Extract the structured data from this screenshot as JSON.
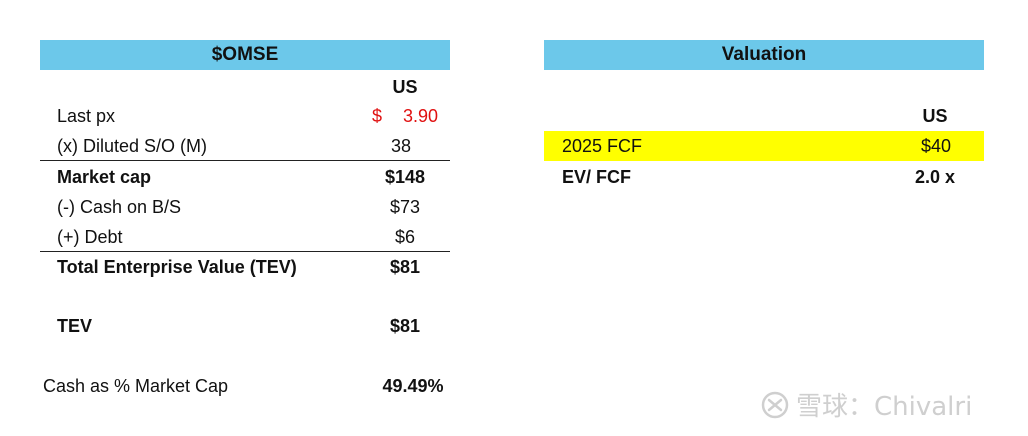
{
  "left_table": {
    "title": "$OMSE",
    "currency_header": "US",
    "rows": [
      {
        "label": "Last px",
        "currency": "$",
        "value": "3.90"
      },
      {
        "label": "(x) Diluted S/O (M)",
        "value": "38"
      },
      {
        "label": "Market cap",
        "value": "$148"
      },
      {
        "label": "(-) Cash on B/S",
        "value": "$73"
      },
      {
        "label": "(+) Debt",
        "value": "$6"
      },
      {
        "label": "Total Enterprise Value (TEV)",
        "value": "$81"
      },
      {
        "label": "TEV",
        "value": "$81"
      },
      {
        "label": "Cash as % Market Cap",
        "value": "49.49%"
      }
    ]
  },
  "right_table": {
    "title": "Valuation",
    "currency_header": "US",
    "rows": [
      {
        "label": "2025 FCF",
        "value": "$40"
      },
      {
        "label": "EV/ FCF",
        "value": "2.0 x"
      }
    ]
  },
  "watermark": {
    "text": "雪球：Chivalri"
  },
  "colors": {
    "header_bg": "#6cc8ea",
    "highlight": "#ffff00",
    "price_red": "#e01010"
  }
}
